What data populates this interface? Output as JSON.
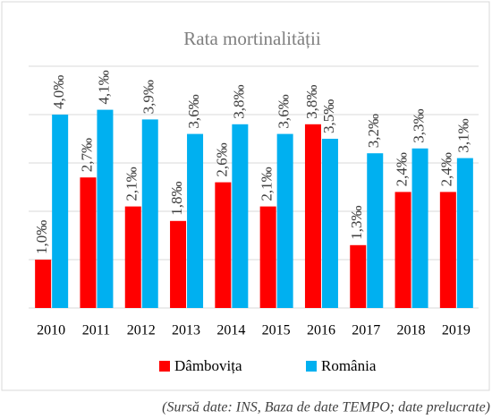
{
  "chart_data": {
    "type": "bar",
    "title": "Rata mortinalității",
    "categories": [
      "2010",
      "2011",
      "2012",
      "2013",
      "2014",
      "2015",
      "2016",
      "2017",
      "2018",
      "2019"
    ],
    "series": [
      {
        "name": "Dâmbovița",
        "color": "#ff0000",
        "values": [
          1.0,
          2.7,
          2.1,
          1.8,
          2.6,
          2.1,
          3.8,
          1.3,
          2.4,
          2.4
        ],
        "value_labels": [
          "1,0‰",
          "2,7‰",
          "2,1‰",
          "1,8‰",
          "2,6‰",
          "2,1‰",
          "3,8‰",
          "1,3‰",
          "2,4‰",
          "2,4‰"
        ]
      },
      {
        "name": "România",
        "color": "#00b0f0",
        "values": [
          4.0,
          4.1,
          3.9,
          3.6,
          3.8,
          3.6,
          3.5,
          3.2,
          3.3,
          3.1
        ],
        "value_labels": [
          "4,0‰",
          "4,1‰",
          "3,9‰",
          "3,6‰",
          "3,8‰",
          "3,6‰",
          "3,5‰",
          "3,2‰",
          "3,3‰",
          "3,1‰"
        ]
      }
    ],
    "ylim": [
      0,
      5
    ],
    "yticks": [
      0,
      1,
      2,
      3,
      4,
      5
    ],
    "grid": true,
    "legend": "bottom",
    "note": "(Sursă date: INS, Baza de date TEMPO; date prelucrate)"
  }
}
